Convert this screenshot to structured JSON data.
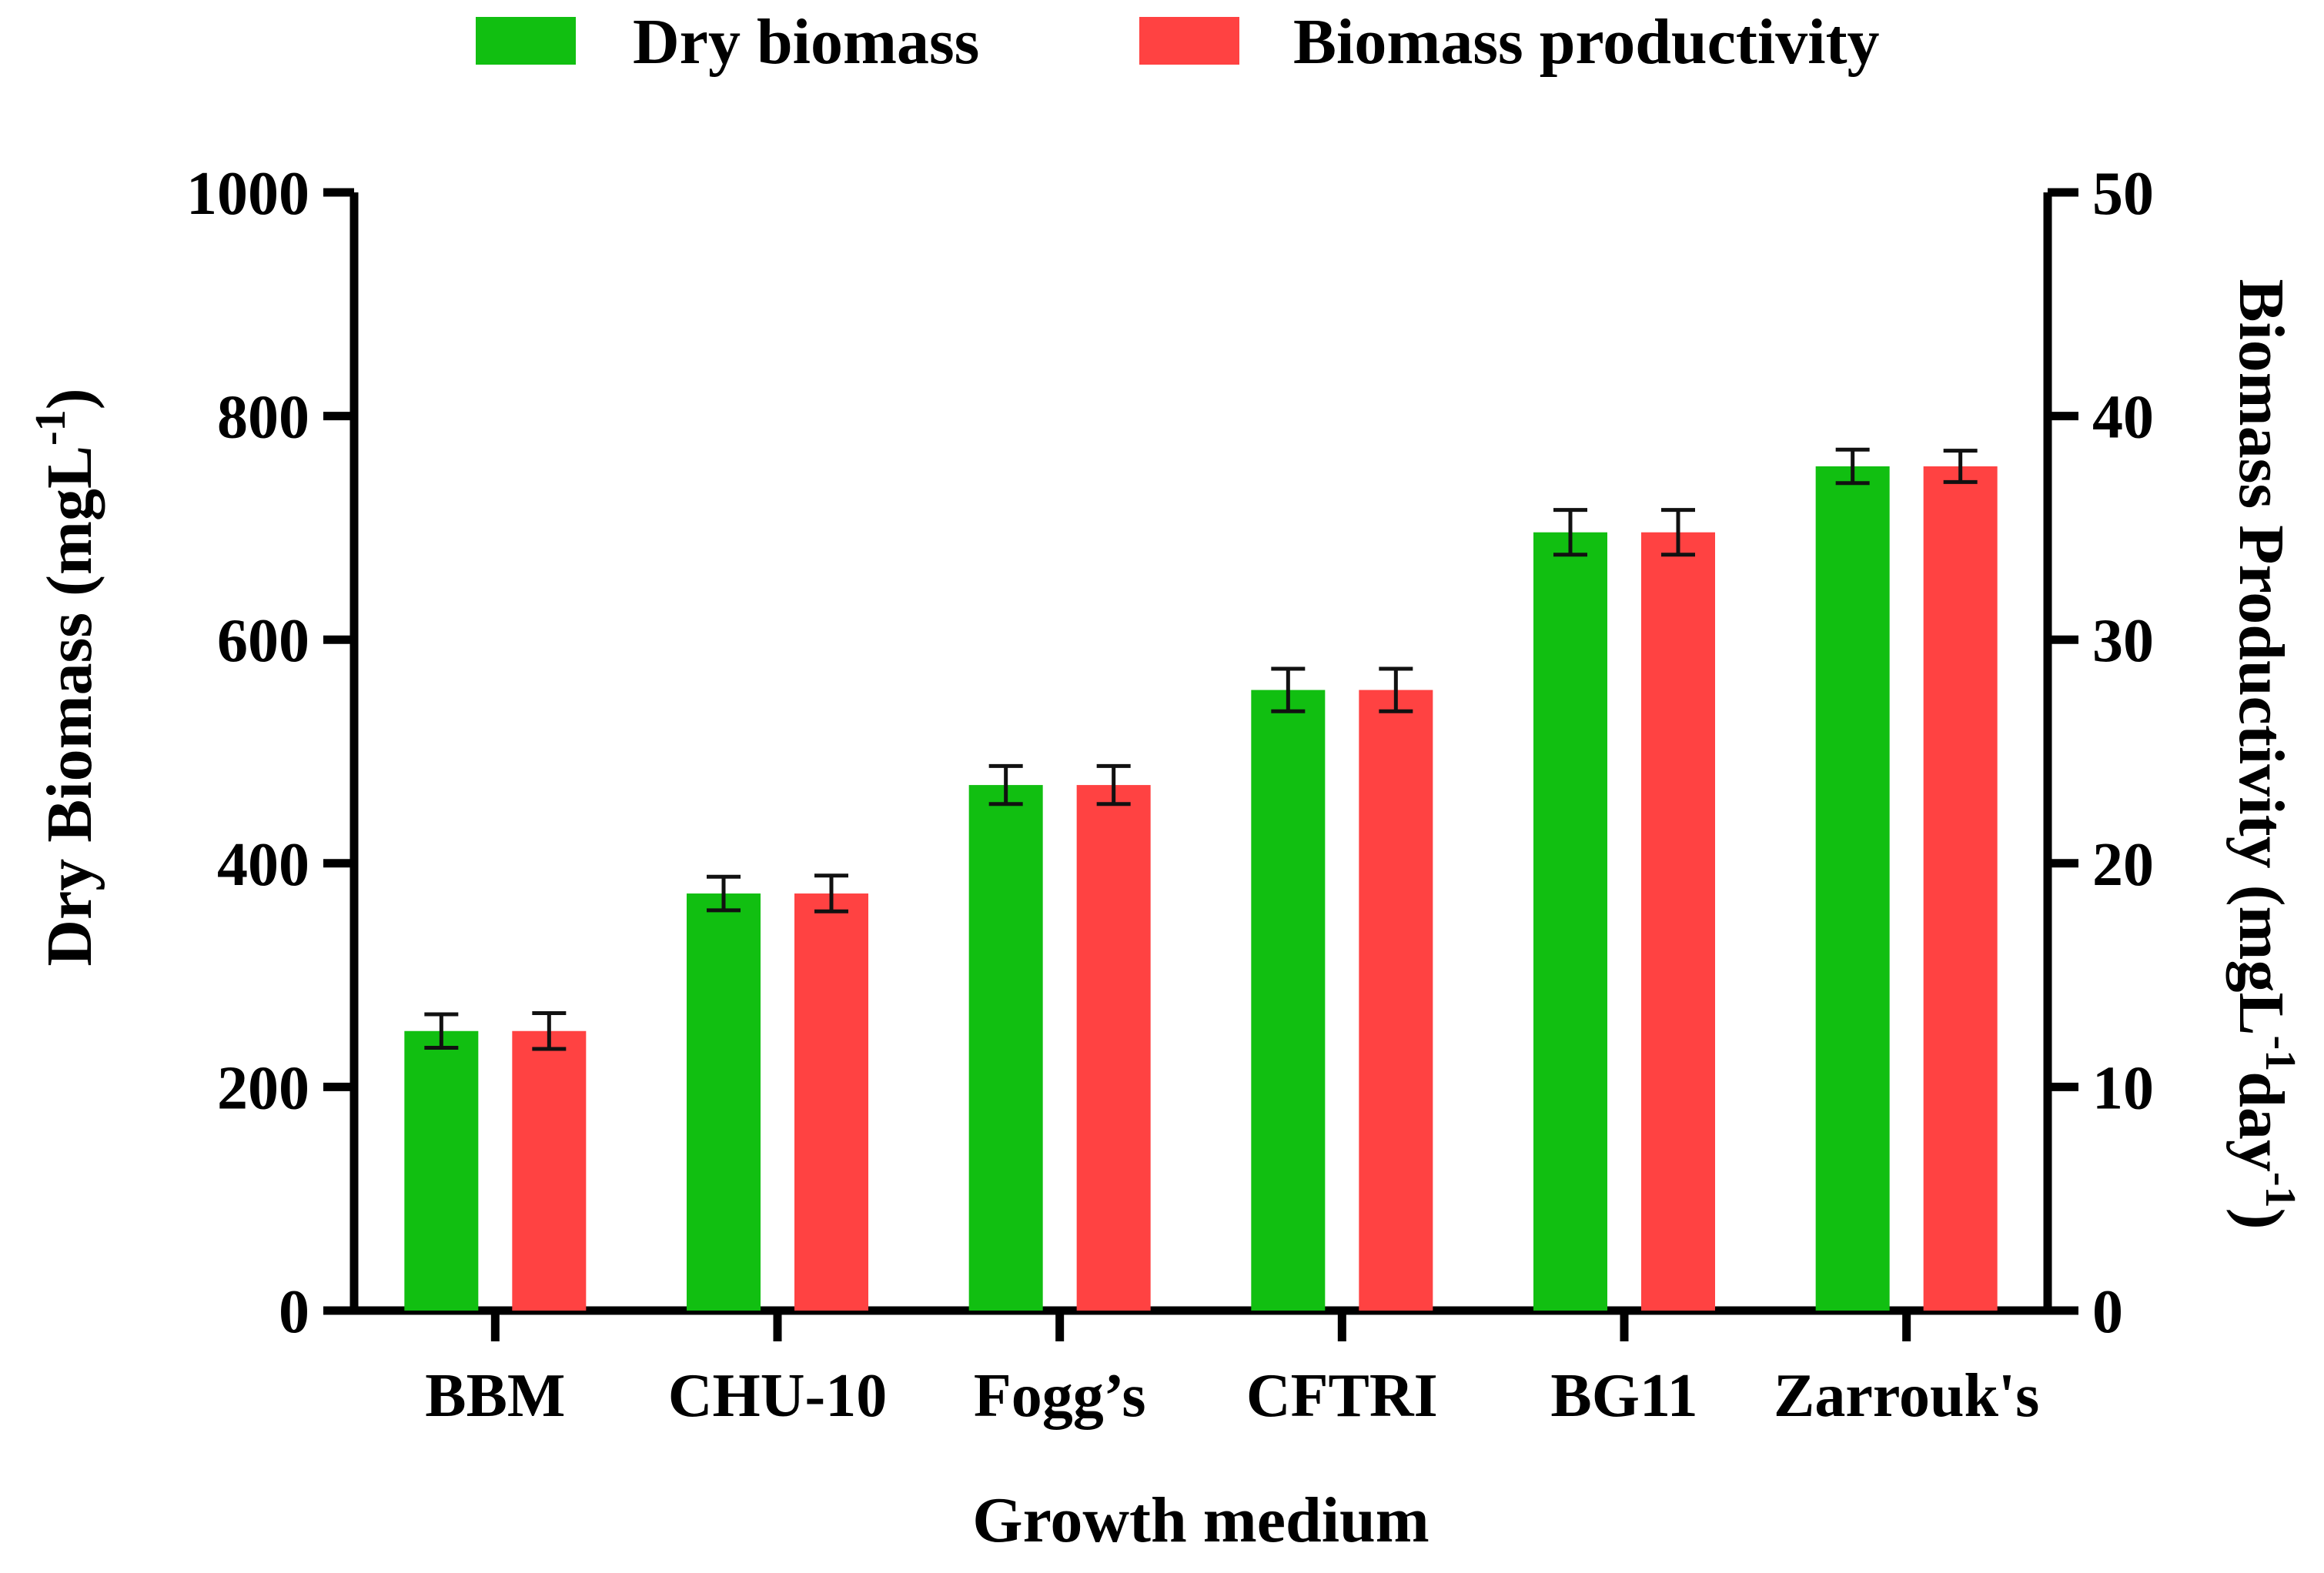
{
  "chart_data": {
    "type": "bar",
    "xlabel": "Growth medium",
    "ylabel_left_main": "Dry Biomass (mgL",
    "ylabel_left_sup": "-1",
    "ylabel_left_end": ")",
    "ylabel_right_main": "Biomass Productivity (mgL",
    "ylabel_right_sup1": "-1",
    "ylabel_right_mid": "day",
    "ylabel_right_sup2": "-1",
    "ylabel_right_end": ")",
    "ylim_left": [
      0,
      1000
    ],
    "ylim_right": [
      0,
      50
    ],
    "yticks_left": [
      "0",
      "200",
      "400",
      "600",
      "800",
      "1000"
    ],
    "yticks_right": [
      "0",
      "10",
      "20",
      "30",
      "40",
      "50"
    ],
    "categories": [
      "BBM",
      "CHU-10",
      "Fogg’s",
      "CFTRI",
      "BG11",
      "Zarrouk's"
    ],
    "series": [
      {
        "name": "Dry biomass",
        "axis": "left",
        "color": "#11BF11",
        "values": [
          250,
          373,
          470,
          555,
          696,
          755
        ],
        "errors": [
          15,
          15,
          17,
          19,
          20,
          15
        ]
      },
      {
        "name": "Biomass productivity",
        "axis": "right",
        "color": "#FF4242",
        "values": [
          12.5,
          18.65,
          23.5,
          27.75,
          34.8,
          37.75
        ],
        "errors": [
          0.8,
          0.8,
          0.85,
          0.95,
          1.0,
          0.7
        ]
      }
    ]
  }
}
